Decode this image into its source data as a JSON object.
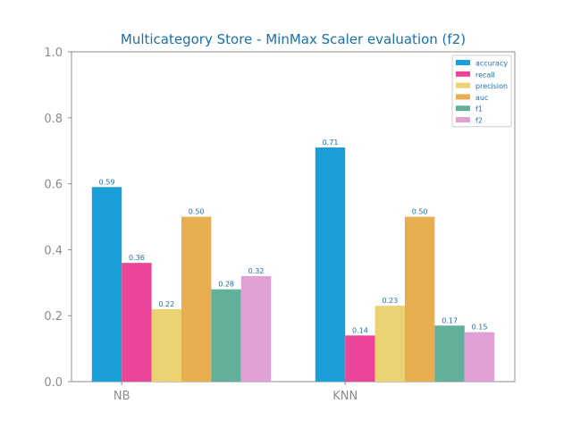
{
  "chart_data": {
    "type": "bar",
    "title": "Multicategory Store - MinMax Scaler evaluation (f2)",
    "xlabel": "",
    "ylabel": "",
    "categories": [
      "NB",
      "KNN"
    ],
    "ylim": [
      0,
      1.0
    ],
    "yticks": [
      "0.0",
      "0.2",
      "0.4",
      "0.6",
      "0.8",
      "1.0"
    ],
    "grid": false,
    "legend_position": "top-right",
    "series": [
      {
        "name": "accuracy",
        "color": "#1a9fd9",
        "values": [
          0.59,
          0.71
        ],
        "labels": [
          "0.59",
          "0.71"
        ]
      },
      {
        "name": "recall",
        "color": "#ea4599",
        "values": [
          0.36,
          0.14
        ],
        "labels": [
          "0.36",
          "0.14"
        ]
      },
      {
        "name": "precision",
        "color": "#ebd373",
        "values": [
          0.22,
          0.23
        ],
        "labels": [
          "0.22",
          "0.23"
        ]
      },
      {
        "name": "auc",
        "color": "#e8ad4f",
        "values": [
          0.5,
          0.5
        ],
        "labels": [
          "0.50",
          "0.50"
        ]
      },
      {
        "name": "f1",
        "color": "#62b09b",
        "values": [
          0.28,
          0.17
        ],
        "labels": [
          "0.28",
          "0.17"
        ]
      },
      {
        "name": "f2",
        "color": "#e0a0d4",
        "values": [
          0.32,
          0.15
        ],
        "labels": [
          "0.32",
          "0.15"
        ]
      }
    ]
  }
}
